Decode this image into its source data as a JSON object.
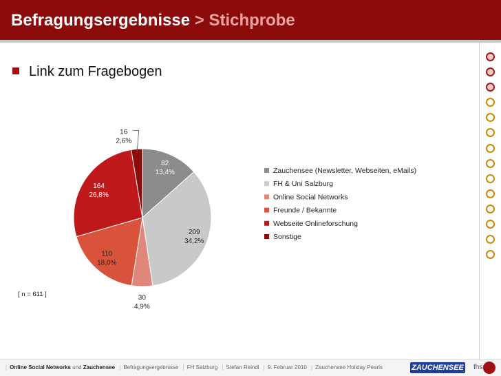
{
  "header": {
    "title": "Befragungsergebnisse",
    "separator": ">",
    "subtitle": "Stichprobe"
  },
  "bullet": {
    "text": "Link zum Fragebogen"
  },
  "sample_note": "[ n = 611 ]",
  "nav": {
    "dots": [
      "filled",
      "filled",
      "filled",
      "hollow",
      "hollow",
      "hollow",
      "hollow",
      "hollow",
      "hollow",
      "hollow",
      "hollow",
      "hollow",
      "hollow",
      "hollow"
    ]
  },
  "chart_data": {
    "type": "pie",
    "slices": [
      {
        "label": "Zauchensee (Newsletter, Webseiten, eMails)",
        "value": 82,
        "percent": "13,4%",
        "color": "#8c8c8c"
      },
      {
        "label": "FH & Uni Salzburg",
        "value": 209,
        "percent": "34,2%",
        "color": "#c9c9c9"
      },
      {
        "label": "Online Social Networks",
        "value": 30,
        "percent": "4,9%",
        "color": "#e0867a"
      },
      {
        "label": "Freunde / Bekannte",
        "value": 110,
        "percent": "18,0%",
        "color": "#d9533c"
      },
      {
        "label": "Webseite Onlineforschung",
        "value": 164,
        "percent": "26,8%",
        "color": "#c0191b"
      },
      {
        "label": "Sonstige",
        "value": 16,
        "percent": "2,6%",
        "color": "#8b0b0b"
      }
    ],
    "legend_position": "right"
  },
  "footer": {
    "part1_bold": "Online Social Networks",
    "part1_mid": " und ",
    "part1_bold2": "Zauchensee",
    "items": [
      "Befragungsergebnisse",
      "FH Salzburg",
      "Stefan Reindl",
      "9. Februar 2010",
      "Zauchensee Holiday Pearls"
    ],
    "logo": "ZAUCHENSEE",
    "fhs": "fhs"
  }
}
